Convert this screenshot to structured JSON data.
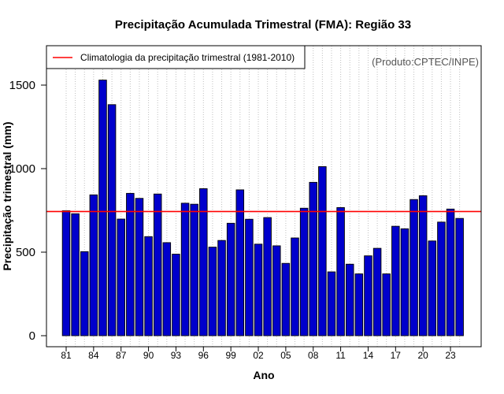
{
  "chart_data": {
    "type": "bar",
    "title": "Precipitação Acumulada Trimestral (FMA): Região 33",
    "xlabel": "Ano",
    "ylabel": "Precipitação trimestral (mm)",
    "credit": "(Produto:CPTEC/INPE)",
    "ylim": [
      0,
      1700
    ],
    "yticks": [
      0,
      500,
      1000,
      1500
    ],
    "ytick_labels": [
      "0",
      "500",
      "1000",
      "1500"
    ],
    "categories": [
      "1981",
      "1982",
      "1983",
      "1984",
      "1985",
      "1986",
      "1987",
      "1988",
      "1989",
      "1990",
      "1991",
      "1992",
      "1993",
      "1994",
      "1995",
      "1996",
      "1997",
      "1998",
      "1999",
      "2000",
      "2001",
      "2002",
      "2003",
      "2004",
      "2005",
      "2006",
      "2007",
      "2008",
      "2009",
      "2010",
      "2011",
      "2012",
      "2013",
      "2014",
      "2015",
      "2016",
      "2017",
      "2018",
      "2019",
      "2020",
      "2021",
      "2022",
      "2023",
      "2024"
    ],
    "values": [
      748,
      730,
      503,
      843,
      1530,
      1383,
      698,
      852,
      822,
      593,
      848,
      557,
      488,
      793,
      787,
      880,
      530,
      570,
      673,
      873,
      697,
      548,
      707,
      538,
      433,
      585,
      763,
      918,
      1012,
      382,
      767,
      428,
      370,
      478,
      523,
      370,
      655,
      640,
      815,
      838,
      567,
      680,
      758,
      702
    ],
    "xtick_indices": [
      0,
      3,
      6,
      9,
      12,
      15,
      18,
      21,
      24,
      27,
      30,
      33,
      36,
      39,
      42
    ],
    "xtick_labels": [
      "81",
      "84",
      "87",
      "90",
      "93",
      "96",
      "99",
      "02",
      "05",
      "08",
      "11",
      "14",
      "17",
      "20",
      "23"
    ],
    "climatology": 743,
    "grid": "vertical-dotted",
    "legend": {
      "position": "top-left",
      "label": "Climatologia da precipitação trimestral (1981-2010)"
    },
    "colors": {
      "bar": "#0000cc",
      "bar_edge": "#000000",
      "climatology": "#ff0000",
      "grid": "#bfbfbf"
    }
  }
}
